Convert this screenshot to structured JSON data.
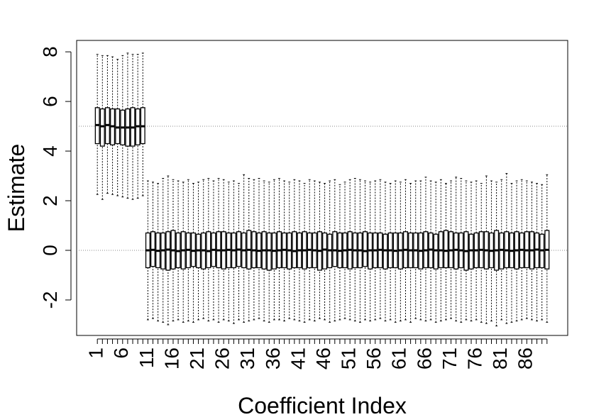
{
  "chart_data": {
    "type": "boxplot",
    "x_label": "Coefficient Index",
    "y_label": "Estimate",
    "categories": [
      1,
      null,
      null,
      null,
      null,
      6,
      null,
      null,
      null,
      null,
      11,
      null,
      null,
      null,
      null,
      16,
      null,
      null,
      null,
      null,
      21,
      null,
      null,
      null,
      null,
      26,
      null,
      null,
      null,
      null,
      31,
      null,
      null,
      null,
      null,
      36,
      null,
      null,
      null,
      null,
      41,
      null,
      null,
      null,
      null,
      46,
      null,
      null,
      null,
      null,
      51,
      null,
      null,
      null,
      null,
      56,
      null,
      null,
      null,
      null,
      61,
      null,
      null,
      null,
      null,
      66,
      null,
      null,
      null,
      null,
      71,
      null,
      null,
      null,
      null,
      76,
      null,
      null,
      null,
      null,
      81,
      null,
      null,
      null,
      null,
      86,
      null,
      null,
      null,
      null
    ],
    "min": [
      2.25,
      2.05,
      2.3,
      2.25,
      2.2,
      2.15,
      2.1,
      2.05,
      2.1,
      2.2,
      -2.8,
      -2.75,
      -2.85,
      -2.9,
      -3.0,
      -2.85,
      -2.8,
      -2.9,
      -2.85,
      -2.9,
      -2.8,
      -2.75,
      -2.85,
      -2.8,
      -2.9,
      -2.8,
      -2.85,
      -2.95,
      -2.8,
      -2.9,
      -2.85,
      -2.8,
      -2.75,
      -2.85,
      -2.9,
      -2.8,
      -2.8,
      -2.85,
      -2.75,
      -2.8,
      -2.85,
      -2.9,
      -2.8,
      -2.85,
      -2.75,
      -2.8,
      -2.9,
      -2.85,
      -2.8,
      -2.75,
      -2.8,
      -2.85,
      -2.9,
      -2.8,
      -2.85,
      -2.8,
      -2.75,
      -2.85,
      -2.8,
      -2.9,
      -2.85,
      -2.8,
      -2.9,
      -2.75,
      -2.8,
      -2.85,
      -2.8,
      -2.9,
      -2.85,
      -2.8,
      -2.75,
      -2.85,
      -2.9,
      -2.8,
      -2.85,
      -2.8,
      -2.9,
      -2.95,
      -2.85,
      -3.05,
      -2.8,
      -2.95,
      -2.9,
      -2.85,
      -2.8,
      -2.75,
      -2.8,
      -2.85,
      -2.8,
      -2.9
    ],
    "q1": [
      4.3,
      4.2,
      4.3,
      4.25,
      4.3,
      4.25,
      4.2,
      4.2,
      4.25,
      4.3,
      -0.7,
      -0.65,
      -0.7,
      -0.75,
      -0.8,
      -0.75,
      -0.7,
      -0.75,
      -0.7,
      -0.65,
      -0.7,
      -0.75,
      -0.7,
      -0.65,
      -0.7,
      -0.75,
      -0.7,
      -0.7,
      -0.65,
      -0.7,
      -0.75,
      -0.7,
      -0.7,
      -0.75,
      -0.8,
      -0.75,
      -0.7,
      -0.7,
      -0.75,
      -0.7,
      -0.7,
      -0.75,
      -0.7,
      -0.7,
      -0.8,
      -0.75,
      -0.7,
      -0.65,
      -0.7,
      -0.7,
      -0.75,
      -0.7,
      -0.7,
      -0.65,
      -0.75,
      -0.7,
      -0.7,
      -0.75,
      -0.7,
      -0.7,
      -0.75,
      -0.7,
      -0.7,
      -0.7,
      -0.75,
      -0.7,
      -0.7,
      -0.75,
      -0.7,
      -0.7,
      -0.7,
      -0.75,
      -0.7,
      -0.8,
      -0.75,
      -0.7,
      -0.7,
      -0.75,
      -0.7,
      -0.8,
      -0.75,
      -0.7,
      -0.7,
      -0.75,
      -0.7,
      -0.7,
      -0.75,
      -0.7,
      -0.7,
      -0.75
    ],
    "median": [
      5.05,
      5.0,
      5.05,
      5.0,
      4.95,
      4.95,
      4.95,
      4.95,
      5.0,
      5.0,
      0.0,
      0.02,
      -0.02,
      0.0,
      0.03,
      0.0,
      -0.03,
      0.0,
      0.02,
      -0.02,
      0.0,
      0.0,
      -0.03,
      0.02,
      0.0,
      0.0,
      0.02,
      0.0,
      0.03,
      0.0,
      0.02,
      0.0,
      -0.02,
      0.0,
      0.0,
      -0.02,
      0.0,
      0.02,
      0.0,
      -0.03,
      0.0,
      0.0,
      0.02,
      0.0,
      -0.02,
      0.03,
      0.0,
      0.0,
      -0.02,
      0.0,
      0.02,
      0.0,
      0.0,
      -0.03,
      0.0,
      0.0,
      0.02,
      0.0,
      0.0,
      -0.02,
      0.0,
      0.02,
      0.0,
      0.0,
      -0.02,
      0.0,
      0.03,
      0.0,
      0.0,
      -0.02,
      0.0,
      0.02,
      0.0,
      -0.03,
      0.0,
      0.0,
      0.02,
      0.0,
      -0.02,
      0.0,
      0.02,
      0.0,
      -0.02,
      0.0,
      0.02,
      0.0,
      0.0,
      0.03,
      0.0,
      0.02
    ],
    "q3": [
      5.75,
      5.7,
      5.75,
      5.7,
      5.7,
      5.65,
      5.7,
      5.75,
      5.7,
      5.75,
      0.7,
      0.75,
      0.7,
      0.7,
      0.75,
      0.8,
      0.7,
      0.75,
      0.7,
      0.7,
      0.65,
      0.7,
      0.75,
      0.7,
      0.75,
      0.75,
      0.7,
      0.7,
      0.75,
      0.7,
      0.8,
      0.75,
      0.7,
      0.75,
      0.7,
      0.7,
      0.75,
      0.7,
      0.7,
      0.75,
      0.7,
      0.75,
      0.7,
      0.7,
      0.75,
      0.7,
      0.65,
      0.75,
      0.7,
      0.7,
      0.75,
      0.7,
      0.7,
      0.75,
      0.7,
      0.7,
      0.7,
      0.65,
      0.7,
      0.7,
      0.7,
      0.75,
      0.7,
      0.7,
      0.7,
      0.75,
      0.7,
      0.65,
      0.75,
      0.8,
      0.75,
      0.7,
      0.7,
      0.75,
      0.65,
      0.7,
      0.75,
      0.75,
      0.7,
      0.8,
      0.7,
      0.75,
      0.7,
      0.75,
      0.7,
      0.75,
      0.75,
      0.7,
      0.65,
      0.8
    ],
    "max": [
      7.9,
      7.85,
      7.85,
      7.8,
      7.7,
      7.85,
      7.95,
      7.9,
      7.9,
      7.95,
      2.8,
      2.75,
      2.7,
      2.9,
      3.0,
      2.85,
      2.8,
      2.75,
      2.85,
      2.7,
      2.75,
      2.85,
      2.9,
      2.8,
      2.9,
      2.85,
      2.75,
      2.8,
      2.7,
      3.05,
      2.9,
      2.85,
      2.9,
      2.8,
      2.75,
      2.85,
      2.9,
      2.8,
      2.75,
      2.85,
      2.8,
      2.7,
      2.85,
      2.8,
      2.75,
      2.7,
      2.8,
      2.85,
      2.65,
      2.75,
      2.85,
      2.9,
      2.85,
      2.8,
      2.75,
      2.8,
      2.85,
      2.75,
      2.7,
      2.8,
      2.75,
      2.85,
      2.7,
      2.8,
      2.8,
      2.95,
      2.8,
      2.75,
      2.85,
      2.7,
      2.8,
      2.95,
      2.9,
      2.8,
      2.75,
      2.8,
      2.7,
      3.0,
      2.8,
      2.75,
      2.85,
      3.1,
      2.7,
      2.8,
      2.85,
      2.8,
      2.75,
      2.7,
      2.65,
      3.05
    ],
    "reference_lines": [
      0,
      5
    ],
    "ylim": [
      -3.43,
      8.46
    ],
    "yticks": [
      -2,
      0,
      2,
      4,
      6,
      8
    ],
    "box_color": "#000000",
    "reference_color": "#888888"
  }
}
